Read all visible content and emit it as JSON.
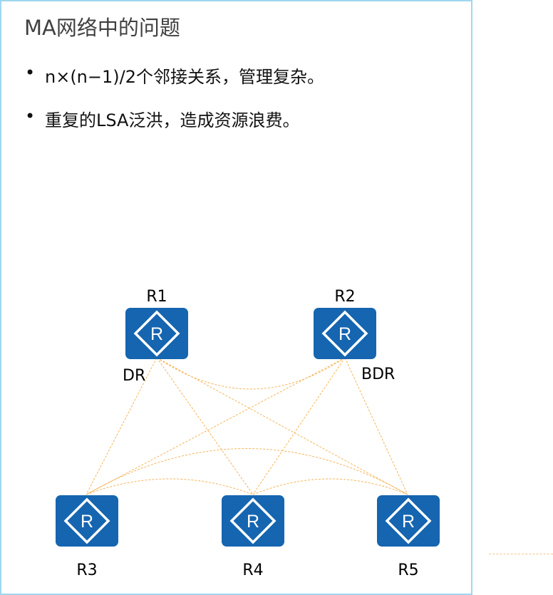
{
  "slide": {
    "title": "MA网络中的问题",
    "bullets": [
      "n×(n−1)/2个邻接关系，管理复杂。",
      "重复的LSA泛洪，造成资源浪费。"
    ],
    "bullet_char": "•"
  },
  "topology": {
    "routers": [
      {
        "id": "R1",
        "label": "R1",
        "role": "DR"
      },
      {
        "id": "R2",
        "label": "R2",
        "role": "BDR"
      },
      {
        "id": "R3",
        "label": "R3",
        "role": ""
      },
      {
        "id": "R4",
        "label": "R4",
        "role": ""
      },
      {
        "id": "R5",
        "label": "R5",
        "role": ""
      }
    ],
    "icon_letter": "R",
    "adjacency_count": 10,
    "colors": {
      "router": "#1565b0",
      "link": "#f5b55c",
      "border": "#9ed7ef"
    }
  }
}
